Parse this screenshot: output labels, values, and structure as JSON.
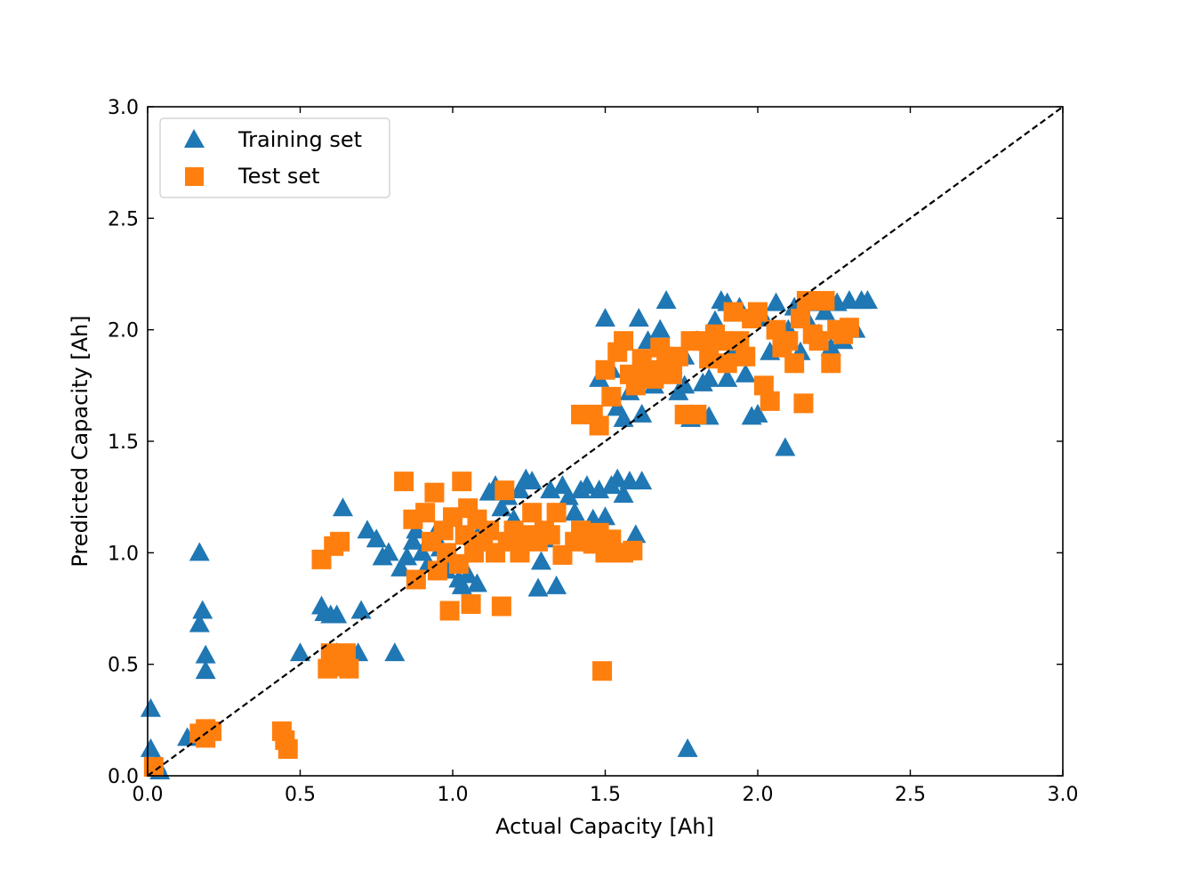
{
  "chart_data": {
    "type": "scatter",
    "xlabel": "Actual Capacity [Ah]",
    "ylabel": "Predicted Capacity [Ah]",
    "xlim": [
      0.0,
      3.0
    ],
    "ylim": [
      0.0,
      3.0
    ],
    "xticks": [
      "0.0",
      "0.5",
      "1.0",
      "1.5",
      "2.0",
      "2.5",
      "3.0"
    ],
    "yticks": [
      "0.0",
      "0.5",
      "1.0",
      "1.5",
      "2.0",
      "2.5",
      "3.0"
    ],
    "legend_position": "top-left",
    "reference_line": {
      "name": "y = x",
      "style": "dashed",
      "color": "#000000",
      "from": [
        0,
        0
      ],
      "to": [
        3,
        3
      ]
    },
    "series": [
      {
        "name": "Training set",
        "marker": "triangle",
        "color": "#1f77b4",
        "points": [
          [
            0.01,
            0.3
          ],
          [
            0.01,
            0.12
          ],
          [
            0.04,
            0.02
          ],
          [
            0.03,
            0.05
          ],
          [
            0.13,
            0.17
          ],
          [
            0.17,
            1.0
          ],
          [
            0.17,
            0.68
          ],
          [
            0.18,
            0.74
          ],
          [
            0.19,
            0.54
          ],
          [
            0.19,
            0.47
          ],
          [
            0.2,
            0.2
          ],
          [
            0.5,
            0.55
          ],
          [
            0.57,
            0.76
          ],
          [
            0.58,
            0.73
          ],
          [
            0.6,
            0.72
          ],
          [
            0.62,
            0.72
          ],
          [
            0.64,
            1.2
          ],
          [
            0.62,
            0.55
          ],
          [
            0.7,
            0.74
          ],
          [
            0.69,
            0.55
          ],
          [
            0.72,
            1.1
          ],
          [
            0.75,
            1.06
          ],
          [
            0.77,
            0.98
          ],
          [
            0.79,
            1.0
          ],
          [
            0.81,
            0.55
          ],
          [
            0.83,
            0.93
          ],
          [
            0.85,
            0.98
          ],
          [
            0.87,
            1.05
          ],
          [
            0.88,
            1.1
          ],
          [
            0.9,
            1.0
          ],
          [
            0.92,
            0.95
          ],
          [
            0.94,
            1.08
          ],
          [
            0.96,
            1.02
          ],
          [
            0.98,
            0.92
          ],
          [
            1.0,
            0.96
          ],
          [
            1.02,
            0.88
          ],
          [
            1.03,
            0.85
          ],
          [
            1.05,
            0.9
          ],
          [
            1.07,
            1.0
          ],
          [
            1.08,
            0.86
          ],
          [
            1.1,
            1.12
          ],
          [
            1.12,
            1.27
          ],
          [
            1.14,
            1.3
          ],
          [
            1.16,
            1.2
          ],
          [
            1.18,
            1.25
          ],
          [
            1.2,
            1.15
          ],
          [
            1.22,
            1.28
          ],
          [
            1.24,
            1.33
          ],
          [
            1.26,
            1.32
          ],
          [
            1.28,
            0.84
          ],
          [
            1.3,
            1.06
          ],
          [
            1.29,
            0.96
          ],
          [
            1.32,
            1.28
          ],
          [
            1.34,
            0.85
          ],
          [
            1.36,
            1.3
          ],
          [
            1.38,
            1.25
          ],
          [
            1.4,
            1.18
          ],
          [
            1.42,
            1.28
          ],
          [
            1.44,
            1.3
          ],
          [
            1.46,
            1.15
          ],
          [
            1.48,
            1.28
          ],
          [
            1.5,
            1.16
          ],
          [
            1.52,
            1.3
          ],
          [
            1.54,
            1.33
          ],
          [
            1.56,
            1.26
          ],
          [
            1.58,
            1.32
          ],
          [
            1.6,
            1.08
          ],
          [
            1.62,
            1.32
          ],
          [
            1.5,
            2.05
          ],
          [
            1.48,
            1.78
          ],
          [
            1.52,
            1.82
          ],
          [
            1.54,
            1.65
          ],
          [
            1.56,
            1.6
          ],
          [
            1.58,
            1.72
          ],
          [
            1.6,
            1.8
          ],
          [
            1.61,
            2.05
          ],
          [
            1.62,
            1.62
          ],
          [
            1.64,
            1.95
          ],
          [
            1.66,
            1.8
          ],
          [
            1.68,
            2.0
          ],
          [
            1.7,
            2.13
          ],
          [
            1.72,
            1.84
          ],
          [
            1.74,
            1.72
          ],
          [
            1.76,
            1.88
          ],
          [
            1.78,
            1.6
          ],
          [
            1.8,
            1.95
          ],
          [
            1.82,
            1.76
          ],
          [
            1.84,
            1.61
          ],
          [
            1.86,
            2.04
          ],
          [
            1.88,
            2.13
          ],
          [
            1.9,
            2.12
          ],
          [
            1.92,
            1.9
          ],
          [
            1.94,
            2.1
          ],
          [
            1.96,
            1.8
          ],
          [
            1.98,
            1.61
          ],
          [
            2.0,
            1.62
          ],
          [
            2.02,
            2.05
          ],
          [
            2.04,
            1.9
          ],
          [
            2.06,
            2.12
          ],
          [
            2.08,
            1.95
          ],
          [
            2.09,
            1.47
          ],
          [
            2.1,
            2.0
          ],
          [
            2.12,
            2.1
          ],
          [
            2.14,
            1.9
          ],
          [
            2.16,
            2.05
          ],
          [
            2.18,
            2.12
          ],
          [
            2.2,
            1.98
          ],
          [
            2.22,
            2.08
          ],
          [
            2.24,
            1.92
          ],
          [
            2.26,
            2.12
          ],
          [
            2.28,
            1.95
          ],
          [
            2.3,
            2.13
          ],
          [
            2.32,
            2.0
          ],
          [
            2.34,
            2.13
          ],
          [
            2.36,
            2.13
          ],
          [
            1.77,
            0.12
          ],
          [
            1.66,
            1.75
          ],
          [
            1.7,
            1.85
          ],
          [
            1.76,
            1.75
          ],
          [
            1.84,
            1.78
          ],
          [
            1.9,
            1.78
          ]
        ]
      },
      {
        "name": "Test set",
        "marker": "square",
        "color": "#ff7f0e",
        "points": [
          [
            0.02,
            0.04
          ],
          [
            0.17,
            0.19
          ],
          [
            0.19,
            0.21
          ],
          [
            0.21,
            0.2
          ],
          [
            0.19,
            0.17
          ],
          [
            0.44,
            0.2
          ],
          [
            0.45,
            0.16
          ],
          [
            0.46,
            0.12
          ],
          [
            0.57,
            0.97
          ],
          [
            0.61,
            1.03
          ],
          [
            0.63,
            1.05
          ],
          [
            0.59,
            0.48
          ],
          [
            0.6,
            0.55
          ],
          [
            0.62,
            0.5
          ],
          [
            0.64,
            0.49
          ],
          [
            0.65,
            0.55
          ],
          [
            0.66,
            0.48
          ],
          [
            0.84,
            1.32
          ],
          [
            0.87,
            1.15
          ],
          [
            0.88,
            0.88
          ],
          [
            0.91,
            1.18
          ],
          [
            0.93,
            1.05
          ],
          [
            0.94,
            1.27
          ],
          [
            0.95,
            0.92
          ],
          [
            0.97,
            1.1
          ],
          [
            0.98,
            1.0
          ],
          [
            0.99,
            0.74
          ],
          [
            1.0,
            1.16
          ],
          [
            1.02,
            0.95
          ],
          [
            1.03,
            1.32
          ],
          [
            1.04,
            1.08
          ],
          [
            1.05,
            1.2
          ],
          [
            1.06,
            0.77
          ],
          [
            1.07,
            1.0
          ],
          [
            1.08,
            1.15
          ],
          [
            1.1,
            1.05
          ],
          [
            1.12,
            1.1
          ],
          [
            1.14,
            1.0
          ],
          [
            1.16,
            0.76
          ],
          [
            1.17,
            1.28
          ],
          [
            1.18,
            1.05
          ],
          [
            1.2,
            1.1
          ],
          [
            1.22,
            1.0
          ],
          [
            1.24,
            1.08
          ],
          [
            1.26,
            1.18
          ],
          [
            1.28,
            1.05
          ],
          [
            1.3,
            1.1
          ],
          [
            1.32,
            1.08
          ],
          [
            1.34,
            1.18
          ],
          [
            1.36,
            0.99
          ],
          [
            1.4,
            1.05
          ],
          [
            1.42,
            1.1
          ],
          [
            1.44,
            1.06
          ],
          [
            1.46,
            1.04
          ],
          [
            1.48,
            1.09
          ],
          [
            1.5,
            1.0
          ],
          [
            1.52,
            1.06
          ],
          [
            1.56,
            1.0
          ],
          [
            1.59,
            1.01
          ],
          [
            1.49,
            0.47
          ],
          [
            1.42,
            1.62
          ],
          [
            1.46,
            1.62
          ],
          [
            1.48,
            1.57
          ],
          [
            1.5,
            1.82
          ],
          [
            1.52,
            1.7
          ],
          [
            1.54,
            1.9
          ],
          [
            1.56,
            1.95
          ],
          [
            1.58,
            1.8
          ],
          [
            1.6,
            1.75
          ],
          [
            1.62,
            1.87
          ],
          [
            1.64,
            1.82
          ],
          [
            1.66,
            1.78
          ],
          [
            1.68,
            1.92
          ],
          [
            1.7,
            1.85
          ],
          [
            1.72,
            1.8
          ],
          [
            1.74,
            1.88
          ],
          [
            1.76,
            1.62
          ],
          [
            1.78,
            1.95
          ],
          [
            1.8,
            1.62
          ],
          [
            1.82,
            1.95
          ],
          [
            1.84,
            1.87
          ],
          [
            1.86,
            1.98
          ],
          [
            1.88,
            1.95
          ],
          [
            1.9,
            1.85
          ],
          [
            1.92,
            2.08
          ],
          [
            1.94,
            1.95
          ],
          [
            1.96,
            1.88
          ],
          [
            1.98,
            2.05
          ],
          [
            2.0,
            2.08
          ],
          [
            2.02,
            1.75
          ],
          [
            2.04,
            1.68
          ],
          [
            2.06,
            2.0
          ],
          [
            2.08,
            1.92
          ],
          [
            2.1,
            1.95
          ],
          [
            2.12,
            1.85
          ],
          [
            2.14,
            2.05
          ],
          [
            2.15,
            1.67
          ],
          [
            2.16,
            2.13
          ],
          [
            2.18,
            1.98
          ],
          [
            2.2,
            1.95
          ],
          [
            2.22,
            2.13
          ],
          [
            2.24,
            1.85
          ],
          [
            2.26,
            2.0
          ],
          [
            2.28,
            1.98
          ],
          [
            2.3,
            2.01
          ]
        ]
      }
    ]
  }
}
